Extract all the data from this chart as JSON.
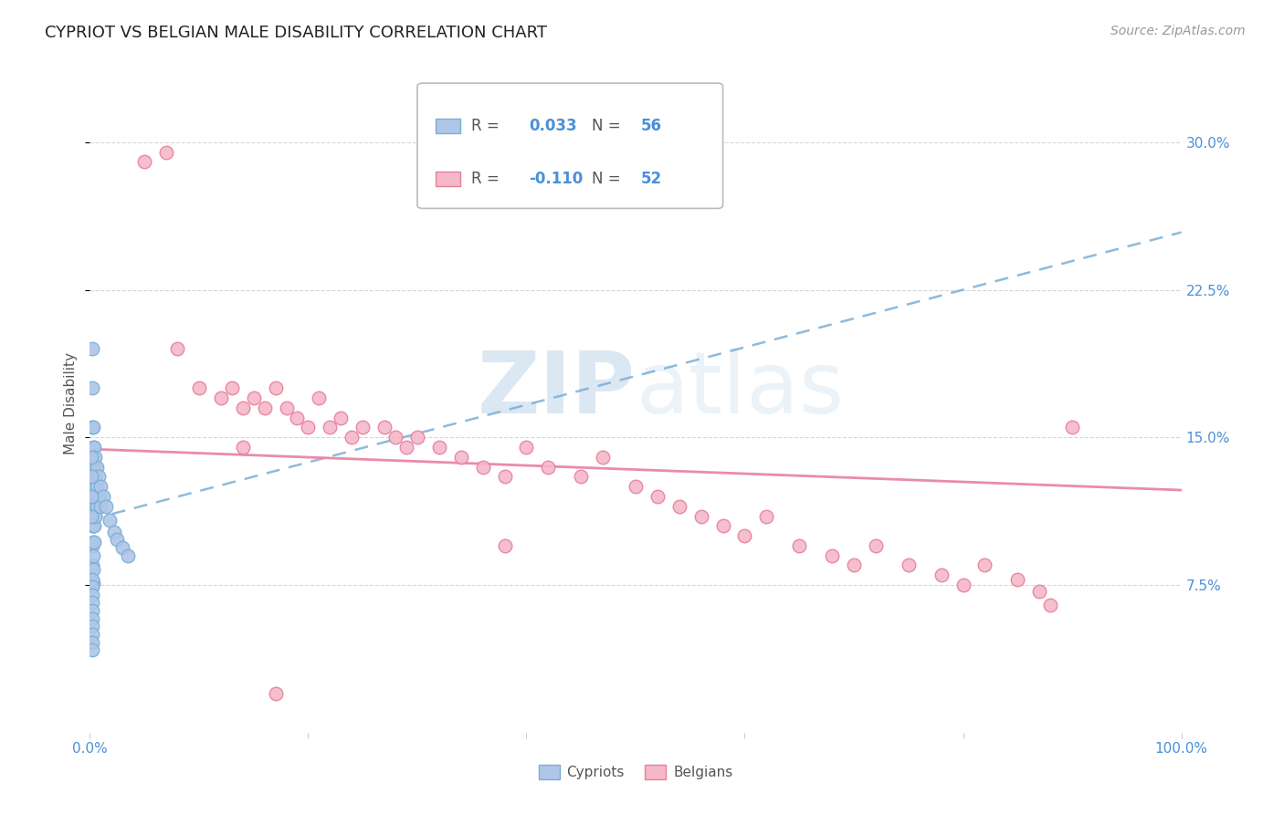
{
  "title": "CYPRIOT VS BELGIAN MALE DISABILITY CORRELATION CHART",
  "source": "Source: ZipAtlas.com",
  "ylabel": "Male Disability",
  "xlim": [
    0.0,
    1.0
  ],
  "ylim": [
    0.0,
    0.335
  ],
  "cypriot_color": "#aec6e8",
  "cypriot_edge_color": "#7aafd4",
  "belgian_color": "#f4b8c8",
  "belgian_edge_color": "#e87ea1",
  "trend_cypriot_color": "#7aafd4",
  "trend_belgian_color": "#e87ea1",
  "watermark_zip": "ZIP",
  "watermark_atlas": "atlas",
  "cypriot_x": [
    0.002,
    0.002,
    0.002,
    0.002,
    0.002,
    0.002,
    0.002,
    0.002,
    0.003,
    0.003,
    0.003,
    0.003,
    0.003,
    0.003,
    0.003,
    0.003,
    0.003,
    0.003,
    0.004,
    0.004,
    0.004,
    0.004,
    0.004,
    0.004,
    0.005,
    0.005,
    0.005,
    0.005,
    0.006,
    0.006,
    0.006,
    0.008,
    0.008,
    0.01,
    0.01,
    0.012,
    0.015,
    0.018,
    0.022,
    0.025,
    0.03,
    0.035,
    0.002,
    0.002,
    0.002,
    0.002,
    0.002,
    0.002,
    0.002,
    0.002,
    0.002,
    0.002,
    0.001,
    0.001,
    0.001,
    0.001
  ],
  "cypriot_y": [
    0.195,
    0.175,
    0.155,
    0.135,
    0.118,
    0.105,
    0.095,
    0.085,
    0.155,
    0.145,
    0.135,
    0.125,
    0.115,
    0.105,
    0.097,
    0.09,
    0.083,
    0.076,
    0.145,
    0.135,
    0.125,
    0.115,
    0.105,
    0.097,
    0.14,
    0.13,
    0.12,
    0.11,
    0.135,
    0.125,
    0.115,
    0.13,
    0.12,
    0.125,
    0.115,
    0.12,
    0.115,
    0.108,
    0.102,
    0.098,
    0.094,
    0.09,
    0.078,
    0.074,
    0.07,
    0.066,
    0.062,
    0.058,
    0.054,
    0.05,
    0.046,
    0.042,
    0.14,
    0.13,
    0.12,
    0.11
  ],
  "belgian_x": [
    0.05,
    0.07,
    0.08,
    0.1,
    0.12,
    0.13,
    0.14,
    0.15,
    0.16,
    0.17,
    0.18,
    0.19,
    0.2,
    0.21,
    0.22,
    0.23,
    0.24,
    0.25,
    0.27,
    0.28,
    0.29,
    0.3,
    0.32,
    0.34,
    0.36,
    0.38,
    0.4,
    0.42,
    0.45,
    0.47,
    0.5,
    0.52,
    0.54,
    0.56,
    0.58,
    0.6,
    0.62,
    0.65,
    0.68,
    0.7,
    0.72,
    0.75,
    0.78,
    0.8,
    0.82,
    0.85,
    0.87,
    0.88,
    0.9,
    0.38,
    0.14,
    0.17
  ],
  "belgian_y": [
    0.29,
    0.295,
    0.195,
    0.175,
    0.17,
    0.175,
    0.165,
    0.17,
    0.165,
    0.175,
    0.165,
    0.16,
    0.155,
    0.17,
    0.155,
    0.16,
    0.15,
    0.155,
    0.155,
    0.15,
    0.145,
    0.15,
    0.145,
    0.14,
    0.135,
    0.13,
    0.145,
    0.135,
    0.13,
    0.14,
    0.125,
    0.12,
    0.115,
    0.11,
    0.105,
    0.1,
    0.11,
    0.095,
    0.09,
    0.085,
    0.095,
    0.085,
    0.08,
    0.075,
    0.085,
    0.078,
    0.072,
    0.065,
    0.155,
    0.095,
    0.145,
    0.02
  ]
}
